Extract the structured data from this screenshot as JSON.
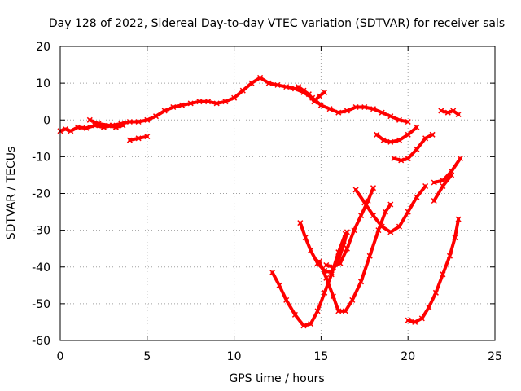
{
  "chart_data": {
    "type": "scatter",
    "title": "Day 128 of 2022, Sidereal Day-to-day VTEC variation (SDTVAR) for receiver sals",
    "xlabel": "GPS time / hours",
    "ylabel": "SDTVAR / TECUs",
    "xlim": [
      0,
      25
    ],
    "ylim": [
      -60,
      20
    ],
    "xticks": [
      0,
      5,
      10,
      15,
      20,
      25
    ],
    "yticks": [
      -60,
      -50,
      -40,
      -30,
      -20,
      -10,
      0,
      10,
      20
    ],
    "grid": true,
    "legend": "none",
    "series_color": "#ff0000",
    "series": [
      {
        "points": [
          [
            0.0,
            -3
          ],
          [
            0.3,
            -2.5
          ],
          [
            0.6,
            -3
          ],
          [
            1.0,
            -2
          ],
          [
            1.5,
            -2.2
          ],
          [
            2.0,
            -1.5
          ],
          [
            2.5,
            -2
          ],
          [
            3.0,
            -1.5
          ],
          [
            3.5,
            -1
          ],
          [
            4.0,
            -0.5
          ],
          [
            4.5,
            -0.5
          ],
          [
            5.0,
            0
          ],
          [
            5.5,
            1
          ],
          [
            6.0,
            2.5
          ],
          [
            6.5,
            3.5
          ],
          [
            7.0,
            4
          ],
          [
            7.5,
            4.5
          ],
          [
            8.0,
            5
          ],
          [
            8.5,
            5
          ],
          [
            9.0,
            4.5
          ],
          [
            9.5,
            5
          ],
          [
            10.0,
            6
          ],
          [
            10.5,
            8
          ],
          [
            11.0,
            10
          ],
          [
            11.5,
            11.5
          ],
          [
            12.0,
            10
          ],
          [
            12.5,
            9.5
          ],
          [
            13.0,
            9
          ],
          [
            13.5,
            8.5
          ],
          [
            14.0,
            7.5
          ],
          [
            14.5,
            6
          ],
          [
            15.0,
            4
          ],
          [
            15.5,
            3
          ],
          [
            16.0,
            2
          ],
          [
            16.5,
            2.5
          ],
          [
            17.0,
            3.5
          ],
          [
            17.5,
            3.5
          ],
          [
            18.0,
            3
          ],
          [
            18.5,
            2
          ],
          [
            19.0,
            1
          ],
          [
            19.5,
            0
          ],
          [
            20.0,
            -0.5
          ]
        ]
      },
      {
        "points": [
          [
            1.7,
            0
          ],
          [
            2.2,
            -1
          ],
          [
            2.8,
            -1.5
          ],
          [
            3.2,
            -2
          ],
          [
            3.6,
            -1.5
          ]
        ]
      },
      {
        "points": [
          [
            4.0,
            -5.5
          ],
          [
            4.5,
            -5
          ],
          [
            5.0,
            -4.5
          ]
        ]
      },
      {
        "points": [
          [
            13.7,
            9
          ],
          [
            14.0,
            8
          ],
          [
            14.3,
            7
          ],
          [
            14.6,
            5
          ],
          [
            14.9,
            6.5
          ],
          [
            15.2,
            7.5
          ]
        ]
      },
      {
        "points": [
          [
            18.2,
            -4
          ],
          [
            18.6,
            -5.5
          ],
          [
            19.0,
            -6
          ],
          [
            19.5,
            -5.5
          ],
          [
            20.0,
            -4
          ],
          [
            20.5,
            -2
          ]
        ]
      },
      {
        "points": [
          [
            19.2,
            -10.5
          ],
          [
            19.6,
            -11
          ],
          [
            20.0,
            -10.5
          ],
          [
            20.5,
            -8
          ],
          [
            21.0,
            -5
          ],
          [
            21.4,
            -4
          ]
        ]
      },
      {
        "points": [
          [
            21.9,
            2.5
          ],
          [
            22.3,
            2
          ],
          [
            22.6,
            2.5
          ],
          [
            22.9,
            1.5
          ]
        ]
      },
      {
        "points": [
          [
            21.5,
            -17
          ],
          [
            22.0,
            -16.5
          ],
          [
            22.5,
            -14
          ],
          [
            23.0,
            -10.5
          ]
        ]
      },
      {
        "points": [
          [
            12.2,
            -41.5
          ],
          [
            12.6,
            -45
          ],
          [
            13.0,
            -49
          ],
          [
            13.5,
            -53
          ],
          [
            14.0,
            -56
          ],
          [
            14.4,
            -55.5
          ],
          [
            14.8,
            -52
          ],
          [
            15.2,
            -47
          ],
          [
            15.6,
            -42
          ],
          [
            16.0,
            -36
          ],
          [
            16.4,
            -31
          ]
        ]
      },
      {
        "points": [
          [
            13.8,
            -28
          ],
          [
            14.1,
            -32
          ],
          [
            14.4,
            -35.5
          ],
          [
            14.8,
            -39
          ],
          [
            15.2,
            -41
          ],
          [
            15.6,
            -41.5
          ],
          [
            16.0,
            -38
          ],
          [
            16.3,
            -34
          ],
          [
            16.5,
            -30.5
          ]
        ]
      },
      {
        "points": [
          [
            14.9,
            -38.5
          ],
          [
            15.3,
            -43
          ],
          [
            15.7,
            -48
          ],
          [
            16.0,
            -52
          ],
          [
            16.4,
            -52
          ],
          [
            16.8,
            -49
          ],
          [
            17.3,
            -44
          ],
          [
            17.8,
            -37
          ],
          [
            18.3,
            -30
          ],
          [
            18.7,
            -25
          ],
          [
            19.0,
            -23
          ]
        ]
      },
      {
        "points": [
          [
            15.3,
            -39.5
          ],
          [
            15.7,
            -40
          ],
          [
            16.1,
            -39
          ],
          [
            16.5,
            -35
          ],
          [
            16.9,
            -30
          ],
          [
            17.3,
            -26
          ],
          [
            17.7,
            -22
          ],
          [
            18.0,
            -18.5
          ]
        ]
      },
      {
        "points": [
          [
            17.0,
            -19
          ],
          [
            17.5,
            -22.5
          ],
          [
            18.0,
            -26
          ],
          [
            18.5,
            -29
          ],
          [
            19.0,
            -30.5
          ],
          [
            19.5,
            -29
          ],
          [
            20.0,
            -25
          ],
          [
            20.5,
            -21
          ],
          [
            21.0,
            -18
          ]
        ]
      },
      {
        "points": [
          [
            20.0,
            -54.5
          ],
          [
            20.4,
            -55
          ],
          [
            20.8,
            -54
          ],
          [
            21.2,
            -51
          ],
          [
            21.6,
            -47
          ],
          [
            22.0,
            -42
          ],
          [
            22.4,
            -37
          ],
          [
            22.7,
            -32
          ],
          [
            22.9,
            -27
          ]
        ]
      },
      {
        "points": [
          [
            21.5,
            -22
          ],
          [
            22.0,
            -18
          ],
          [
            22.5,
            -15
          ]
        ]
      }
    ]
  }
}
